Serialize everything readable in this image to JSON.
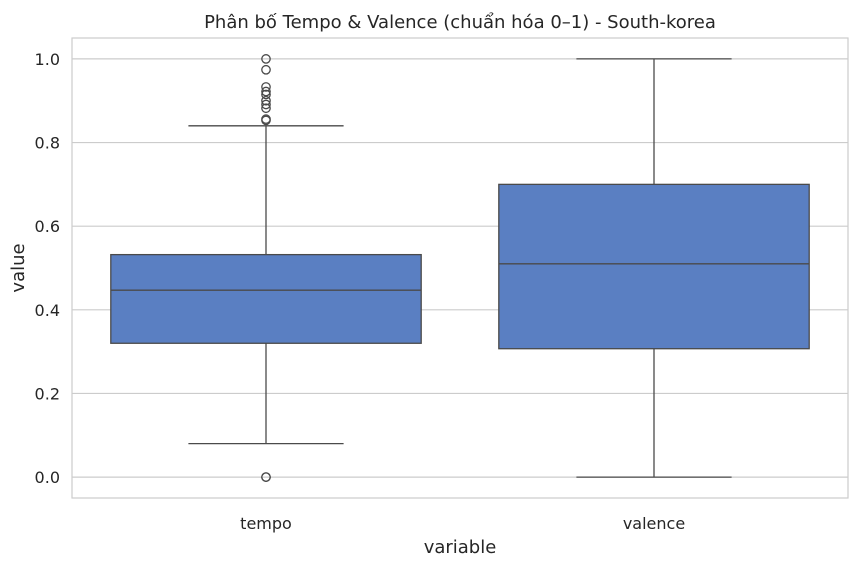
{
  "chart_data": {
    "type": "boxplot",
    "title": "Phân bố Tempo & Valence (chuẩn hóa 0–1) - South-korea",
    "xlabel": "variable",
    "ylabel": "value",
    "ylim": [
      -0.05,
      1.05
    ],
    "yticks": [
      0.0,
      0.2,
      0.4,
      0.6,
      0.8,
      1.0
    ],
    "ytick_labels": [
      "0.0",
      "0.2",
      "0.4",
      "0.6",
      "0.8",
      "1.0"
    ],
    "grid": true,
    "box_color": "#5a7fc2",
    "line_color": "#4a4a4a",
    "categories": [
      "tempo",
      "valence"
    ],
    "boxes": [
      {
        "category": "tempo",
        "whisker_low": 0.08,
        "q1": 0.32,
        "median": 0.447,
        "q3": 0.532,
        "whisker_high": 0.84,
        "outliers": [
          0.0,
          0.0,
          0.853,
          0.856,
          0.882,
          0.891,
          0.9,
          0.915,
          0.922,
          0.933,
          0.974,
          1.0
        ]
      },
      {
        "category": "valence",
        "whisker_low": 0.0,
        "q1": 0.307,
        "median": 0.51,
        "q3": 0.7,
        "whisker_high": 1.0,
        "outliers": []
      }
    ]
  }
}
